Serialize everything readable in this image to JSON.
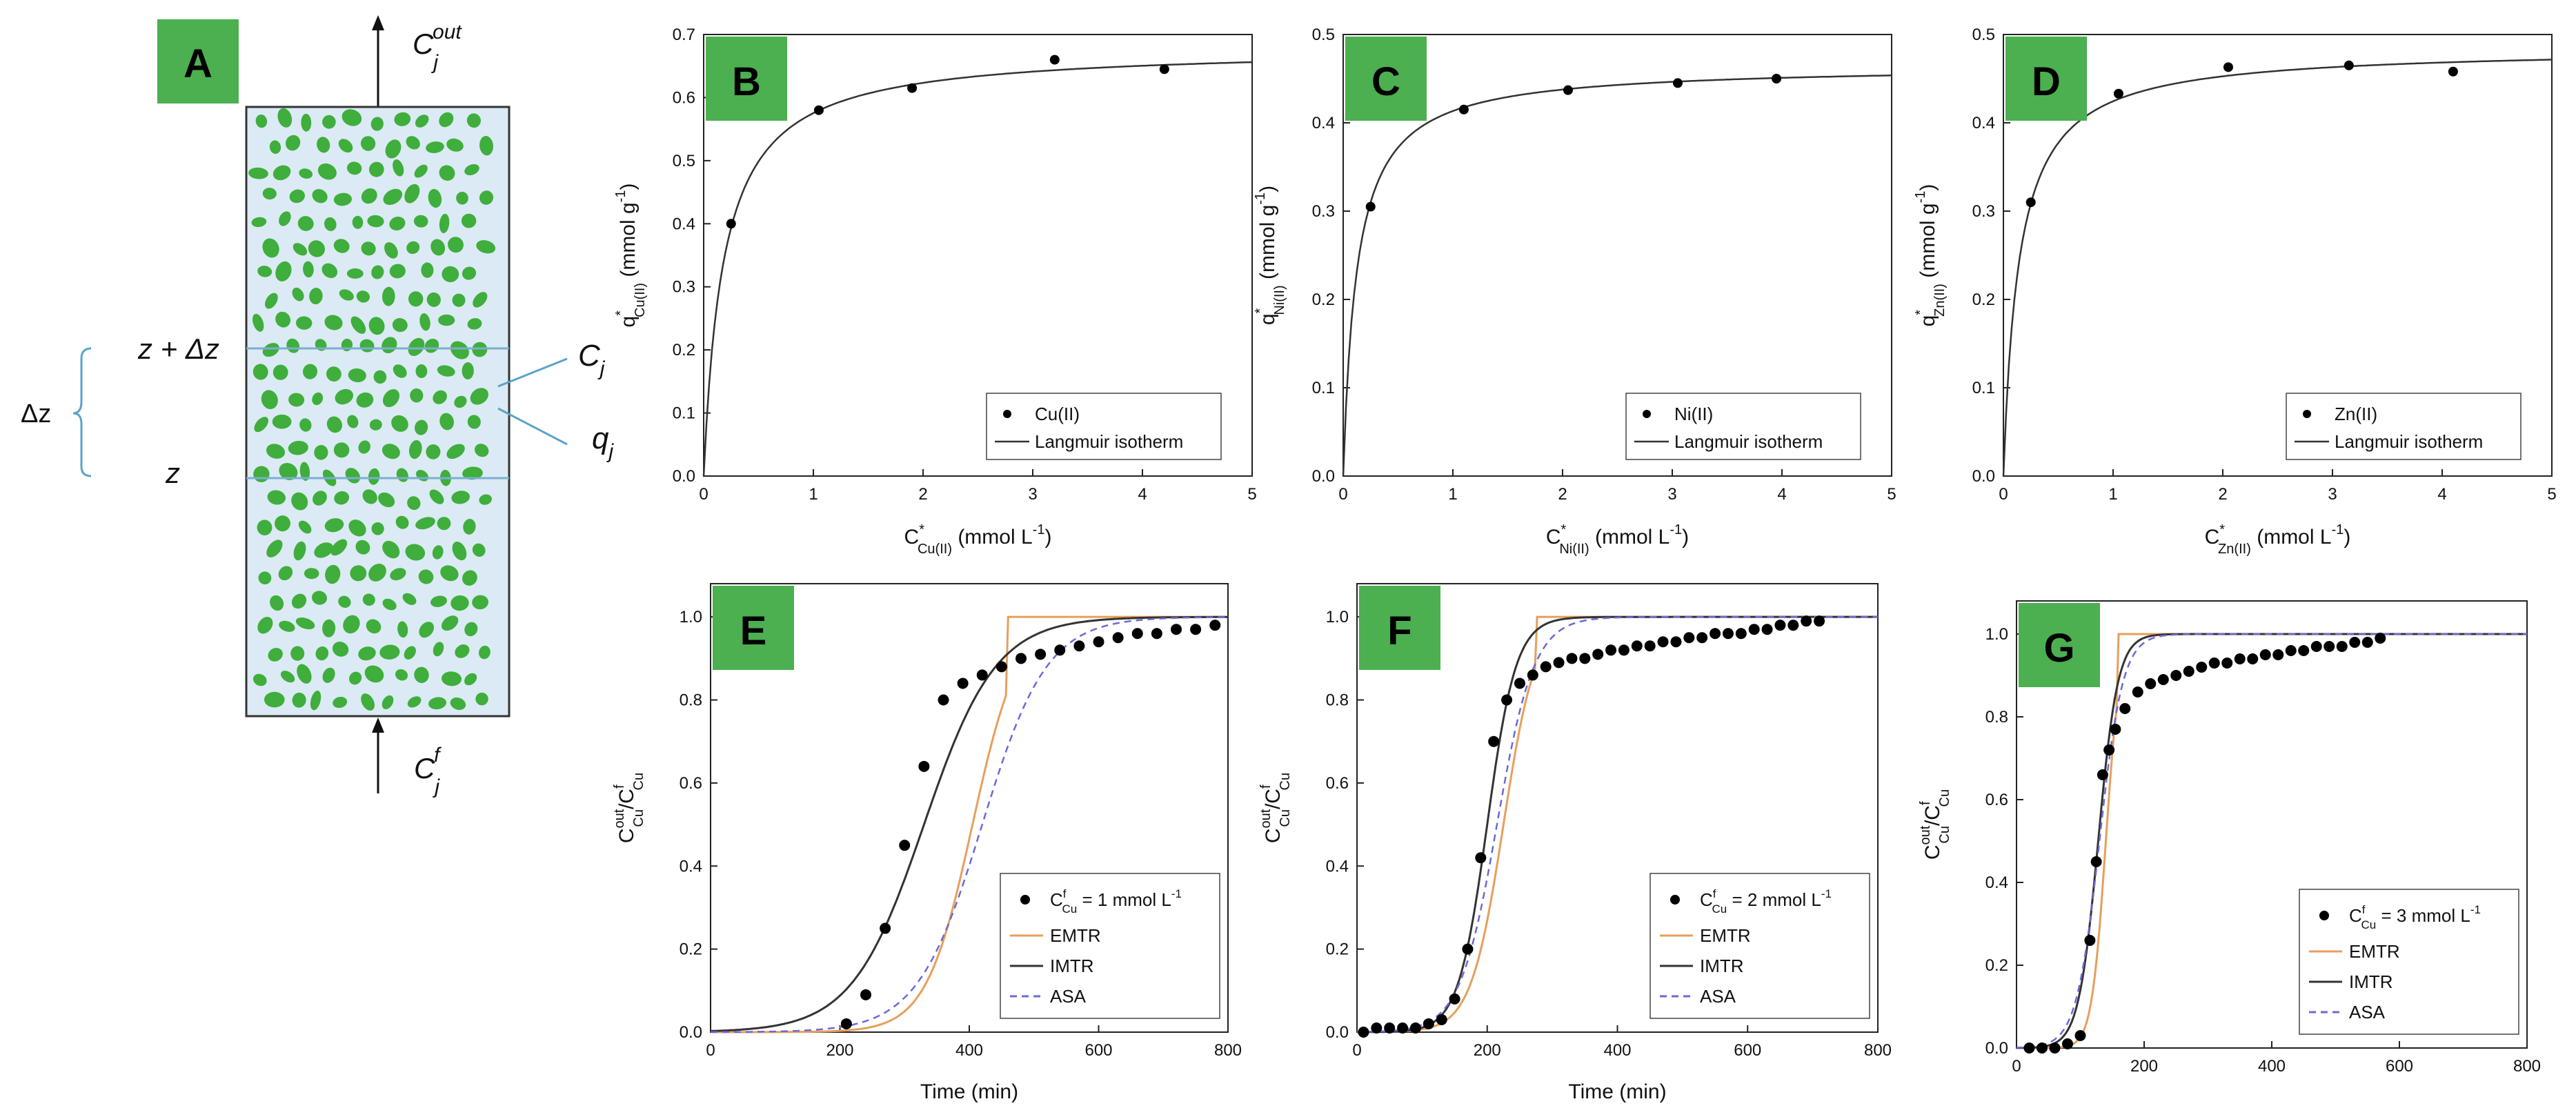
{
  "figure": {
    "panel_a": {
      "label": "A",
      "c_out_label": "C_j^out",
      "c_f_label": "C_j^f",
      "z_top_label": "z + Δz",
      "z_label": "z",
      "dz_label": "Δz",
      "c_label": "C_j",
      "q_label": "q_j",
      "colors": {
        "bed": "#dbeaf4",
        "particle": "#3fae3c",
        "divider": "#7aaed1",
        "badge": "#4caf50"
      }
    },
    "colors": {
      "badge": "#4caf50",
      "emtr": "#e69f5c",
      "imtr": "#333333",
      "asa": "#6a6ad8",
      "data": "#000000",
      "langmuir": "#333333"
    }
  },
  "chart_data": [
    {
      "id": "B",
      "type": "scatter",
      "badge": "B",
      "xlabel_main": "C",
      "xlabel_sup": "*",
      "xlabel_sub": "Cu(II)",
      "xlabel_tail": " (mmol L",
      "xlabel_exp": "-1",
      "xlabel_end": ")",
      "ylabel_main": "q",
      "ylabel_sup": "*",
      "ylabel_sub": "Cu(II)",
      "ylabel_tail": " (mmol g",
      "ylabel_exp": "-1",
      "ylabel_end": ")",
      "xlim": [
        0,
        5
      ],
      "ylim": [
        0,
        0.7
      ],
      "xticks": [
        0,
        1,
        2,
        3,
        4,
        5
      ],
      "yticks": [
        0.0,
        0.1,
        0.2,
        0.3,
        0.4,
        0.5,
        0.6,
        0.7
      ],
      "ytick_labels": [
        "0.0",
        "0.1",
        "0.2",
        "0.3",
        "0.4",
        "0.5",
        "0.6",
        "0.7"
      ],
      "data": {
        "x": [
          0.25,
          1.05,
          1.9,
          3.2,
          4.2
        ],
        "y": [
          0.4,
          0.58,
          0.615,
          0.66,
          0.645
        ]
      },
      "langmuir": {
        "qmax": 0.68,
        "K": 5.5
      },
      "legend": [
        "Cu(II)",
        "Langmuir isotherm"
      ]
    },
    {
      "id": "C",
      "type": "scatter",
      "badge": "C",
      "xlabel_main": "C",
      "xlabel_sup": "*",
      "xlabel_sub": "Ni(II)",
      "xlabel_tail": " (mmol L",
      "xlabel_exp": "-1",
      "xlabel_end": ")",
      "ylabel_main": "q",
      "ylabel_sup": "*",
      "ylabel_sub": "Ni(II)",
      "ylabel_tail": " (mmol g",
      "ylabel_exp": "-1",
      "ylabel_end": ")",
      "xlim": [
        0,
        5
      ],
      "ylim": [
        0,
        0.5
      ],
      "xticks": [
        0,
        1,
        2,
        3,
        4,
        5
      ],
      "yticks": [
        0.0,
        0.1,
        0.2,
        0.3,
        0.4,
        0.5
      ],
      "ytick_labels": [
        "0.0",
        "0.1",
        "0.2",
        "0.3",
        "0.4",
        "0.5"
      ],
      "data": {
        "x": [
          0.25,
          1.1,
          2.05,
          3.05,
          3.95
        ],
        "y": [
          0.305,
          0.415,
          0.437,
          0.445,
          0.45
        ]
      },
      "langmuir": {
        "qmax": 0.465,
        "K": 8.0
      },
      "legend": [
        "Ni(II)",
        "Langmuir isotherm"
      ]
    },
    {
      "id": "D",
      "type": "scatter",
      "badge": "D",
      "xlabel_main": "C",
      "xlabel_sup": "*",
      "xlabel_sub": "Zn(II)",
      "xlabel_tail": " (mmol L",
      "xlabel_exp": "-1",
      "xlabel_end": ")",
      "ylabel_main": "q",
      "ylabel_sup": "*",
      "ylabel_sub": "Zn(II)",
      "ylabel_tail": " (mmol g",
      "ylabel_exp": "-1",
      "ylabel_end": ")",
      "xlim": [
        0,
        5
      ],
      "ylim": [
        0,
        0.5
      ],
      "xticks": [
        0,
        1,
        2,
        3,
        4,
        5
      ],
      "yticks": [
        0.0,
        0.1,
        0.2,
        0.3,
        0.4,
        0.5
      ],
      "ytick_labels": [
        "0.0",
        "0.1",
        "0.2",
        "0.3",
        "0.4",
        "0.5"
      ],
      "data": {
        "x": [
          0.25,
          1.05,
          2.05,
          3.15,
          4.1
        ],
        "y": [
          0.31,
          0.433,
          0.463,
          0.465,
          0.458
        ]
      },
      "langmuir": {
        "qmax": 0.485,
        "K": 7.0
      },
      "legend": [
        "Zn(II)",
        "Langmuir isotherm"
      ]
    },
    {
      "id": "E",
      "type": "line",
      "badge": "E",
      "xlabel": "Time (min)",
      "ylabel_main": "C",
      "ylabel_sup": "out",
      "ylabel_sub": "Cu",
      "ylabel_slash": "/C",
      "ylabel_sup2": "f",
      "ylabel_sub2": "Cu",
      "xlim": [
        0,
        800
      ],
      "ylim": [
        0,
        1.08
      ],
      "xticks": [
        0,
        200,
        400,
        600,
        800
      ],
      "yticks": [
        0.0,
        0.2,
        0.4,
        0.6,
        0.8,
        1.0
      ],
      "ytick_labels": [
        "0.0",
        "0.2",
        "0.4",
        "0.6",
        "0.8",
        "1.0"
      ],
      "data": {
        "x": [
          210,
          240,
          270,
          300,
          330,
          360,
          390,
          420,
          450,
          480,
          510,
          540,
          570,
          600,
          630,
          660,
          690,
          720,
          750,
          780
        ],
        "y": [
          0.02,
          0.09,
          0.25,
          0.45,
          0.64,
          0.8,
          0.84,
          0.86,
          0.88,
          0.9,
          0.91,
          0.92,
          0.93,
          0.94,
          0.95,
          0.96,
          0.96,
          0.97,
          0.97,
          0.98
        ]
      },
      "series": [
        {
          "name": "EMTR",
          "t50": 405,
          "k": 0.028,
          "cap": 1.0,
          "capAt": 460
        },
        {
          "name": "IMTR",
          "t50": 330,
          "k": 0.018,
          "cap": null,
          "capAt": null
        },
        {
          "name": "ASA",
          "t50": 420,
          "k": 0.02,
          "cap": null,
          "capAt": null
        }
      ],
      "legend_data": "C",
      "legend_data_sup": "f",
      "legend_data_sub": "Cu",
      "legend_data_rest": " = 1 mmol L",
      "legend_data_exp": "-1",
      "legend": [
        "EMTR",
        "IMTR",
        "ASA"
      ]
    },
    {
      "id": "F",
      "type": "line",
      "badge": "F",
      "xlabel": "Time (min)",
      "ylabel_main": "C",
      "ylabel_sup": "out",
      "ylabel_sub": "Cu",
      "ylabel_slash": "/C",
      "ylabel_sup2": "f",
      "ylabel_sub2": "Cu",
      "xlim": [
        0,
        800
      ],
      "ylim": [
        0,
        1.08
      ],
      "xticks": [
        0,
        200,
        400,
        600,
        800
      ],
      "yticks": [
        0.0,
        0.2,
        0.4,
        0.6,
        0.8,
        1.0
      ],
      "ytick_labels": [
        "0.0",
        "0.2",
        "0.4",
        "0.6",
        "0.8",
        "1.0"
      ],
      "data": {
        "x": [
          10,
          30,
          50,
          70,
          90,
          110,
          130,
          150,
          170,
          190,
          210,
          230,
          250,
          270,
          290,
          310,
          330,
          350,
          370,
          390,
          410,
          430,
          450,
          470,
          490,
          510,
          530,
          550,
          570,
          590,
          610,
          630,
          650,
          670,
          690,
          710
        ],
        "y": [
          0.0,
          0.01,
          0.01,
          0.01,
          0.01,
          0.02,
          0.03,
          0.08,
          0.2,
          0.42,
          0.7,
          0.8,
          0.84,
          0.86,
          0.88,
          0.89,
          0.9,
          0.9,
          0.91,
          0.92,
          0.92,
          0.93,
          0.93,
          0.94,
          0.94,
          0.95,
          0.95,
          0.96,
          0.96,
          0.96,
          0.97,
          0.97,
          0.98,
          0.98,
          0.99,
          0.99
        ]
      },
      "series": [
        {
          "name": "EMTR",
          "t50": 225,
          "k": 0.04,
          "cap": 1.0,
          "capAt": 275
        },
        {
          "name": "IMTR",
          "t50": 200,
          "k": 0.045,
          "cap": null,
          "capAt": null
        },
        {
          "name": "ASA",
          "t50": 215,
          "k": 0.035,
          "cap": null,
          "capAt": null
        }
      ],
      "legend_data": "C",
      "legend_data_sup": "f",
      "legend_data_sub": "Cu",
      "legend_data_rest": " = 2 mmol L",
      "legend_data_exp": "-1",
      "legend": [
        "EMTR",
        "IMTR",
        "ASA"
      ]
    },
    {
      "id": "G",
      "type": "line",
      "badge": "G",
      "xlabel": "",
      "ylabel_main": "C",
      "ylabel_sup": "out",
      "ylabel_sub": "Cu",
      "ylabel_slash": "/C",
      "ylabel_sup2": "f",
      "ylabel_sub2": "Cu",
      "xlim": [
        0,
        800
      ],
      "ylim": [
        0,
        1.08
      ],
      "xticks": [
        0,
        200,
        400,
        600,
        800
      ],
      "yticks": [
        0.0,
        0.2,
        0.4,
        0.6,
        0.8,
        1.0
      ],
      "ytick_labels": [
        "0.0",
        "0.2",
        "0.4",
        "0.6",
        "0.8",
        "1.0"
      ],
      "data": {
        "x": [
          20,
          40,
          60,
          80,
          100,
          115,
          125,
          135,
          145,
          155,
          170,
          190,
          210,
          230,
          250,
          270,
          290,
          310,
          330,
          350,
          370,
          390,
          410,
          430,
          450,
          470,
          490,
          510,
          530,
          550,
          570
        ],
        "y": [
          0.0,
          0.0,
          0.0,
          0.01,
          0.03,
          0.26,
          0.45,
          0.66,
          0.72,
          0.77,
          0.82,
          0.86,
          0.88,
          0.89,
          0.9,
          0.91,
          0.92,
          0.93,
          0.93,
          0.94,
          0.94,
          0.95,
          0.95,
          0.96,
          0.96,
          0.97,
          0.97,
          0.97,
          0.98,
          0.98,
          0.99
        ]
      },
      "series": [
        {
          "name": "EMTR",
          "t50": 140,
          "k": 0.09,
          "cap": 1.0,
          "capAt": 160
        },
        {
          "name": "IMTR",
          "t50": 128,
          "k": 0.065,
          "cap": null,
          "capAt": null
        },
        {
          "name": "ASA",
          "t50": 130,
          "k": 0.055,
          "cap": null,
          "capAt": null
        }
      ],
      "legend_data": "C",
      "legend_data_sup": "f",
      "legend_data_sub": "Cu",
      "legend_data_rest": " = 3 mmol L",
      "legend_data_exp": "-1",
      "legend": [
        "EMTR",
        "IMTR",
        "ASA"
      ]
    }
  ]
}
